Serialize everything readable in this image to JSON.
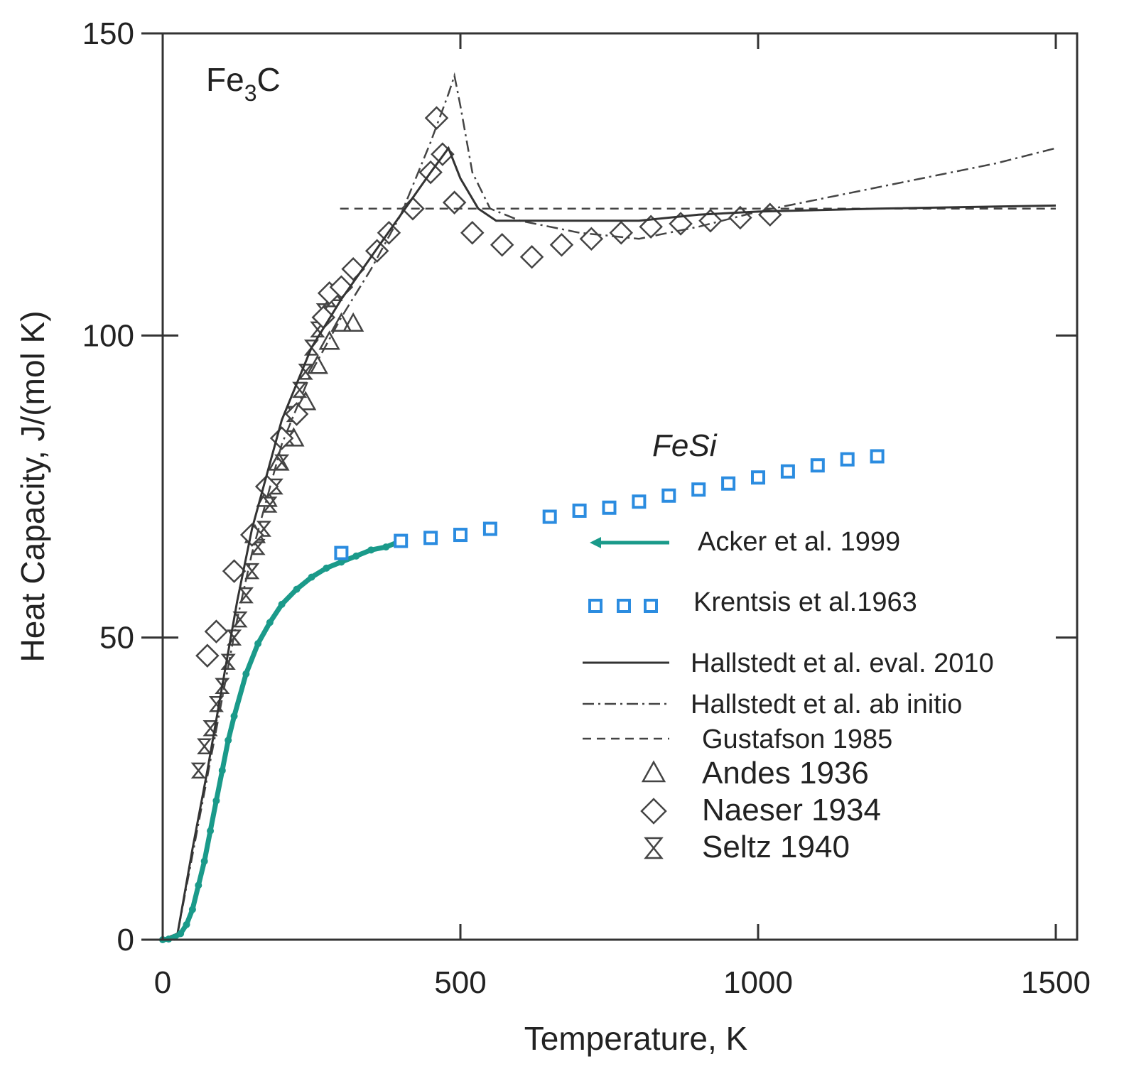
{
  "chart_data": {
    "type": "line",
    "xlabel": "Temperature,  K",
    "ylabel": "Heat Capacity, J/(mol K)",
    "xlim": [
      0,
      1500
    ],
    "ylim": [
      0,
      150
    ],
    "x_ticks": [
      0,
      500,
      1000,
      1500
    ],
    "y_ticks": [
      0,
      50,
      100,
      150
    ],
    "annotations": {
      "fe3c": {
        "main": "Fe",
        "sub": "3",
        "tail": "C"
      },
      "fesi": "FeSi"
    },
    "colors": {
      "acker": "#1a9a8a",
      "krentsis": "#2b8ce0",
      "ink": "#333333"
    },
    "legend": [
      {
        "key": "acker",
        "label": "Acker et al. 1999",
        "style": "arrow-line"
      },
      {
        "key": "krentsis",
        "label": "Krentsis et al.1963",
        "style": "squares"
      },
      {
        "key": "hall_eval",
        "label": "Hallstedt et al. eval. 2010",
        "style": "solid"
      },
      {
        "key": "hall_ab",
        "label": "Hallstedt et al. ab initio",
        "style": "dashdot"
      },
      {
        "key": "gustafson",
        "label": "Gustafson 1985",
        "style": "dashed"
      },
      {
        "key": "andes",
        "label": "Andes 1936",
        "style": "triangle"
      },
      {
        "key": "naeser",
        "label": "Naeser 1934",
        "style": "diamond"
      },
      {
        "key": "seltz",
        "label": "Seltz 1940",
        "style": "hourglass"
      }
    ],
    "series": [
      {
        "name": "Hallstedt et al. eval. 2010",
        "key": "hall_eval",
        "x": [
          0,
          25,
          50,
          75,
          100,
          125,
          150,
          175,
          200,
          250,
          300,
          350,
          400,
          450,
          480,
          500,
          530,
          560,
          600,
          700,
          800,
          900,
          1000,
          1200,
          1500
        ],
        "y": [
          0,
          1,
          15,
          28,
          42,
          56,
          68,
          77,
          86,
          98,
          106,
          113,
          120,
          127,
          131,
          126,
          121,
          119,
          119,
          119,
          119,
          120,
          120.5,
          121,
          121.5
        ]
      },
      {
        "name": "Hallstedt et al. ab initio",
        "key": "hall_ab",
        "x": [
          0,
          25,
          50,
          75,
          100,
          125,
          150,
          175,
          200,
          250,
          300,
          350,
          400,
          450,
          480,
          490,
          500,
          520,
          550,
          600,
          700,
          800,
          900,
          1000,
          1100,
          1200,
          1300,
          1400,
          1500
        ],
        "y": [
          0,
          1,
          14,
          27,
          40,
          53,
          64,
          73,
          82,
          94,
          103,
          111,
          120,
          132,
          140,
          143,
          138,
          127,
          121,
          119,
          117,
          116,
          118,
          120.5,
          122.5,
          124.5,
          126.5,
          128.5,
          131
        ]
      },
      {
        "name": "Gustafson 1985",
        "key": "gustafson",
        "x": [
          298,
          1500
        ],
        "y": [
          121,
          121
        ]
      },
      {
        "name": "Naeser 1934",
        "key": "naeser",
        "x": [
          75,
          90,
          120,
          150,
          175,
          200,
          225,
          270,
          280,
          300,
          320,
          360,
          380,
          420,
          450,
          460,
          470,
          490,
          520,
          570,
          620,
          670,
          720,
          770,
          820,
          870,
          920,
          970,
          1020
        ],
        "y": [
          47,
          51,
          61,
          67,
          75,
          83,
          87,
          103,
          107,
          108,
          111,
          114,
          117,
          121,
          127,
          136,
          130,
          122,
          117,
          115,
          113,
          115,
          116,
          117,
          118,
          118.5,
          119,
          119.5,
          120
        ]
      },
      {
        "name": "Andes 1936",
        "key": "andes",
        "x": [
          155,
          175,
          195,
          220,
          240,
          260,
          280,
          300,
          320
        ],
        "y": [
          67,
          73,
          79,
          83,
          89,
          95,
          99,
          102,
          102
        ]
      },
      {
        "name": "Seltz 1940",
        "key": "seltz",
        "x": [
          60,
          70,
          80,
          90,
          100,
          110,
          120,
          130,
          140,
          150,
          160,
          170,
          180,
          190,
          200,
          210,
          220,
          230,
          240,
          250,
          260,
          270,
          280,
          290
        ],
        "y": [
          28,
          32,
          35,
          39,
          42,
          46,
          50,
          53,
          57,
          61,
          65,
          68,
          72,
          75,
          79,
          83,
          87,
          91,
          94,
          98,
          101,
          104,
          106,
          107
        ]
      },
      {
        "name": "Acker et al. 1999",
        "key": "acker",
        "x": [
          0,
          10,
          20,
          30,
          40,
          50,
          60,
          70,
          80,
          90,
          100,
          110,
          120,
          140,
          160,
          180,
          200,
          225,
          250,
          275,
          300,
          325,
          350,
          375,
          400
        ],
        "y": [
          0,
          0.1,
          0.4,
          1,
          2.5,
          5,
          9,
          13,
          18,
          23,
          28,
          33,
          37,
          44,
          49,
          52.5,
          55.5,
          58,
          60,
          61.5,
          62.5,
          63.5,
          64.5,
          65,
          66
        ]
      },
      {
        "name": "Krentsis et al.1963",
        "key": "krentsis",
        "x": [
          300,
          400,
          450,
          500,
          550,
          650,
          700,
          750,
          800,
          850,
          900,
          950,
          1000,
          1050,
          1100,
          1150,
          1200
        ],
        "y": [
          64,
          66,
          66.5,
          67,
          68,
          70,
          71,
          71.5,
          72.5,
          73.5,
          74.5,
          75.5,
          76.5,
          77.5,
          78.5,
          79.5,
          80
        ]
      }
    ]
  }
}
